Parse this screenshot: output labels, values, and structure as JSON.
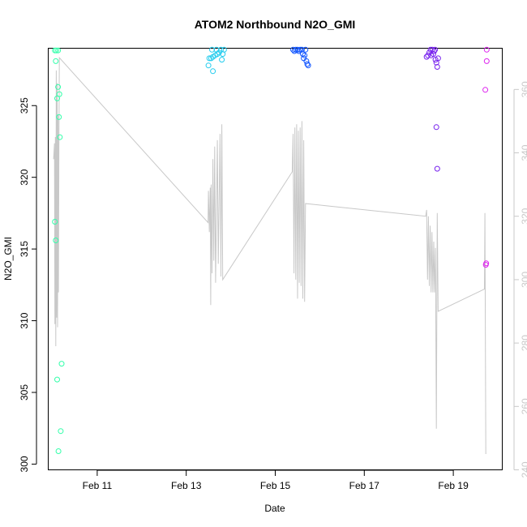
{
  "chart_data": {
    "type": "scatter",
    "title": "ATOM2 Northbound N2O_GMI",
    "xlabel": "Date",
    "ylabel": "N2O_GMI",
    "x_ticks": [
      {
        "value": 11,
        "label": "Feb 11"
      },
      {
        "value": 13,
        "label": "Feb 13"
      },
      {
        "value": 15,
        "label": "Feb 15"
      },
      {
        "value": 17,
        "label": "Feb 17"
      },
      {
        "value": 19,
        "label": "Feb 19"
      }
    ],
    "xlim": [
      9.9,
      20.1
    ],
    "ylim_left": [
      299.6,
      329.0
    ],
    "yticks_left": [
      300,
      305,
      310,
      315,
      320,
      325
    ],
    "ylim_right": [
      240,
      373
    ],
    "yticks_right": [
      240,
      260,
      280,
      300,
      320,
      340,
      360
    ],
    "right_axis_color": "#c8c8c8",
    "line_color": "#c8c8c8",
    "points": [
      {
        "x": 10.05,
        "y": 328.85,
        "c": "#33ffaa"
      },
      {
        "x": 10.08,
        "y": 328.85,
        "c": "#33ffaa"
      },
      {
        "x": 10.12,
        "y": 328.85,
        "c": "#33ffaa"
      },
      {
        "x": 10.07,
        "y": 328.1,
        "c": "#33ffaa"
      },
      {
        "x": 10.12,
        "y": 326.3,
        "c": "#33ffaa"
      },
      {
        "x": 10.15,
        "y": 325.8,
        "c": "#33ffaa"
      },
      {
        "x": 10.1,
        "y": 325.5,
        "c": "#33ffaa"
      },
      {
        "x": 10.14,
        "y": 324.2,
        "c": "#33ffaa"
      },
      {
        "x": 10.16,
        "y": 322.8,
        "c": "#33ffaa"
      },
      {
        "x": 10.05,
        "y": 316.9,
        "c": "#33ffaa"
      },
      {
        "x": 10.07,
        "y": 315.6,
        "c": "#33ffaa"
      },
      {
        "x": 10.2,
        "y": 307.0,
        "c": "#33ffaa"
      },
      {
        "x": 10.1,
        "y": 305.9,
        "c": "#33ffaa"
      },
      {
        "x": 10.18,
        "y": 302.3,
        "c": "#33ffaa"
      },
      {
        "x": 10.13,
        "y": 300.9,
        "c": "#33ffaa"
      },
      {
        "x": 13.5,
        "y": 327.8,
        "c": "#22ccee"
      },
      {
        "x": 13.52,
        "y": 328.3,
        "c": "#22ccee"
      },
      {
        "x": 13.56,
        "y": 328.3,
        "c": "#22ccee"
      },
      {
        "x": 13.6,
        "y": 328.4,
        "c": "#22ccee"
      },
      {
        "x": 13.58,
        "y": 328.9,
        "c": "#22ccee"
      },
      {
        "x": 13.6,
        "y": 327.4,
        "c": "#22ccee"
      },
      {
        "x": 13.65,
        "y": 328.5,
        "c": "#22ccee"
      },
      {
        "x": 13.68,
        "y": 328.9,
        "c": "#22ccee"
      },
      {
        "x": 13.7,
        "y": 328.6,
        "c": "#22ccee"
      },
      {
        "x": 13.74,
        "y": 328.7,
        "c": "#22ccee"
      },
      {
        "x": 13.78,
        "y": 328.9,
        "c": "#22ccee"
      },
      {
        "x": 13.8,
        "y": 328.2,
        "c": "#22ccee"
      },
      {
        "x": 13.82,
        "y": 328.6,
        "c": "#22ccee"
      },
      {
        "x": 13.85,
        "y": 328.9,
        "c": "#22ccee"
      },
      {
        "x": 15.4,
        "y": 328.9,
        "c": "#1155ff"
      },
      {
        "x": 15.43,
        "y": 328.8,
        "c": "#1155ff"
      },
      {
        "x": 15.46,
        "y": 328.9,
        "c": "#1155ff"
      },
      {
        "x": 15.5,
        "y": 328.9,
        "c": "#1155ff"
      },
      {
        "x": 15.53,
        "y": 328.8,
        "c": "#1155ff"
      },
      {
        "x": 15.56,
        "y": 328.9,
        "c": "#1155ff"
      },
      {
        "x": 15.6,
        "y": 328.9,
        "c": "#1155ff"
      },
      {
        "x": 15.62,
        "y": 328.6,
        "c": "#1155ff"
      },
      {
        "x": 15.64,
        "y": 328.3,
        "c": "#1155ff"
      },
      {
        "x": 15.66,
        "y": 328.5,
        "c": "#1155ff"
      },
      {
        "x": 15.68,
        "y": 328.9,
        "c": "#1155ff"
      },
      {
        "x": 15.7,
        "y": 328.1,
        "c": "#1155ff"
      },
      {
        "x": 15.72,
        "y": 327.9,
        "c": "#1155ff"
      },
      {
        "x": 15.74,
        "y": 327.8,
        "c": "#1155ff"
      },
      {
        "x": 18.4,
        "y": 328.4,
        "c": "#7722ee"
      },
      {
        "x": 18.43,
        "y": 328.5,
        "c": "#7722ee"
      },
      {
        "x": 18.46,
        "y": 328.7,
        "c": "#7722ee"
      },
      {
        "x": 18.49,
        "y": 328.9,
        "c": "#7722ee"
      },
      {
        "x": 18.5,
        "y": 328.5,
        "c": "#7722ee"
      },
      {
        "x": 18.53,
        "y": 328.9,
        "c": "#7722ee"
      },
      {
        "x": 18.55,
        "y": 328.6,
        "c": "#7722ee"
      },
      {
        "x": 18.57,
        "y": 328.8,
        "c": "#7722ee"
      },
      {
        "x": 18.59,
        "y": 328.9,
        "c": "#7722ee"
      },
      {
        "x": 18.6,
        "y": 328.2,
        "c": "#7722ee"
      },
      {
        "x": 18.62,
        "y": 328.0,
        "c": "#7722ee"
      },
      {
        "x": 18.64,
        "y": 327.7,
        "c": "#7722ee"
      },
      {
        "x": 18.66,
        "y": 328.3,
        "c": "#7722ee"
      },
      {
        "x": 18.62,
        "y": 323.5,
        "c": "#7722ee"
      },
      {
        "x": 18.64,
        "y": 320.6,
        "c": "#7722ee"
      },
      {
        "x": 19.72,
        "y": 326.1,
        "c": "#dd22ee"
      },
      {
        "x": 19.75,
        "y": 328.9,
        "c": "#dd22ee"
      },
      {
        "x": 19.75,
        "y": 328.1,
        "c": "#dd22ee"
      },
      {
        "x": 19.73,
        "y": 313.9,
        "c": "#dd22ee"
      },
      {
        "x": 19.74,
        "y": 314.0,
        "c": "#dd22ee"
      }
    ],
    "line_series": [
      [
        10.02,
        338
      ],
      [
        10.04,
        343
      ],
      [
        10.05,
        286
      ],
      [
        10.06,
        345
      ],
      [
        10.07,
        279
      ],
      [
        10.08,
        366
      ],
      [
        10.09,
        288
      ],
      [
        10.1,
        362
      ],
      [
        10.11,
        285
      ],
      [
        10.12,
        352
      ],
      [
        10.13,
        296
      ],
      [
        10.14,
        344
      ],
      [
        10.15,
        370
      ],
      [
        13.49,
        318
      ],
      [
        13.5,
        328
      ],
      [
        13.52,
        315
      ],
      [
        13.54,
        329
      ],
      [
        13.55,
        292
      ],
      [
        13.56,
        330
      ],
      [
        13.58,
        302
      ],
      [
        13.6,
        338
      ],
      [
        13.62,
        306
      ],
      [
        13.64,
        342
      ],
      [
        13.66,
        299
      ],
      [
        13.7,
        344
      ],
      [
        13.72,
        305
      ],
      [
        13.76,
        346
      ],
      [
        13.78,
        301
      ],
      [
        13.8,
        349
      ],
      [
        13.82,
        300
      ],
      [
        15.38,
        334
      ],
      [
        15.4,
        346
      ],
      [
        15.42,
        302
      ],
      [
        15.44,
        348
      ],
      [
        15.46,
        300
      ],
      [
        15.48,
        349
      ],
      [
        15.5,
        294
      ],
      [
        15.52,
        347
      ],
      [
        15.54,
        299
      ],
      [
        15.56,
        348
      ],
      [
        15.58,
        298
      ],
      [
        15.6,
        350
      ],
      [
        15.62,
        294
      ],
      [
        15.64,
        344
      ],
      [
        15.66,
        293
      ],
      [
        15.68,
        324
      ],
      [
        18.38,
        320
      ],
      [
        18.4,
        322
      ],
      [
        18.42,
        300
      ],
      [
        18.44,
        320
      ],
      [
        18.46,
        298
      ],
      [
        18.48,
        317
      ],
      [
        18.5,
        296
      ],
      [
        18.52,
        315
      ],
      [
        18.54,
        296
      ],
      [
        18.56,
        312
      ],
      [
        18.58,
        296
      ],
      [
        18.6,
        310
      ],
      [
        18.62,
        253
      ],
      [
        18.64,
        321
      ],
      [
        18.66,
        290
      ],
      [
        19.7,
        297
      ],
      [
        19.71,
        321
      ],
      [
        19.73,
        245
      ]
    ]
  }
}
